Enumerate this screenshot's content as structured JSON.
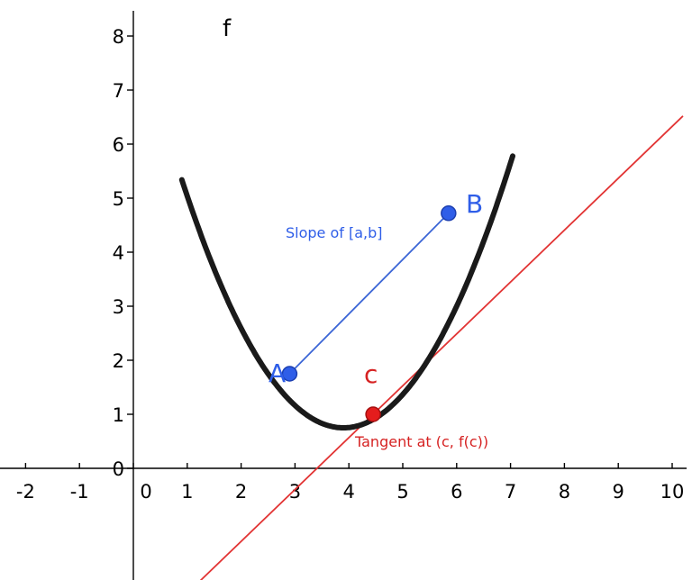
{
  "function_label": "f",
  "point_a_label": "A",
  "point_b_label": "B",
  "point_c_label": "c",
  "secant_label": "Slope of [a,b]",
  "tangent_label": "Tangent at (c, f(c))",
  "colors": {
    "curve": "#1a1a1a",
    "secant": "#3c66d6",
    "tangent": "#e23434",
    "point_blue": "#2f5ee8",
    "point_red": "#e41d1d"
  },
  "chart_data": {
    "type": "line",
    "x_ticks": [
      "-2",
      "-1",
      "0",
      "1",
      "2",
      "3",
      "4",
      "5",
      "6",
      "7",
      "8",
      "9",
      "10"
    ],
    "y_ticks": [
      "0",
      "1",
      "2",
      "3",
      "4",
      "5",
      "6",
      "7",
      "8"
    ],
    "xlim": [
      -2.3,
      10.2
    ],
    "ylim": [
      -2.3,
      8.3
    ],
    "curve": {
      "name": "f",
      "vertex_x": 3.9,
      "vertex_y": 0.75,
      "a": 0.51
    },
    "point_a": {
      "x": 2.9,
      "y": 1.75
    },
    "point_b": {
      "x": 5.85,
      "y": 4.72
    },
    "point_c": {
      "x": 4.45,
      "y": 1.0
    },
    "tangent": {
      "slope": 0.96,
      "through_x": 4.45,
      "through_y": 1.0
    }
  }
}
